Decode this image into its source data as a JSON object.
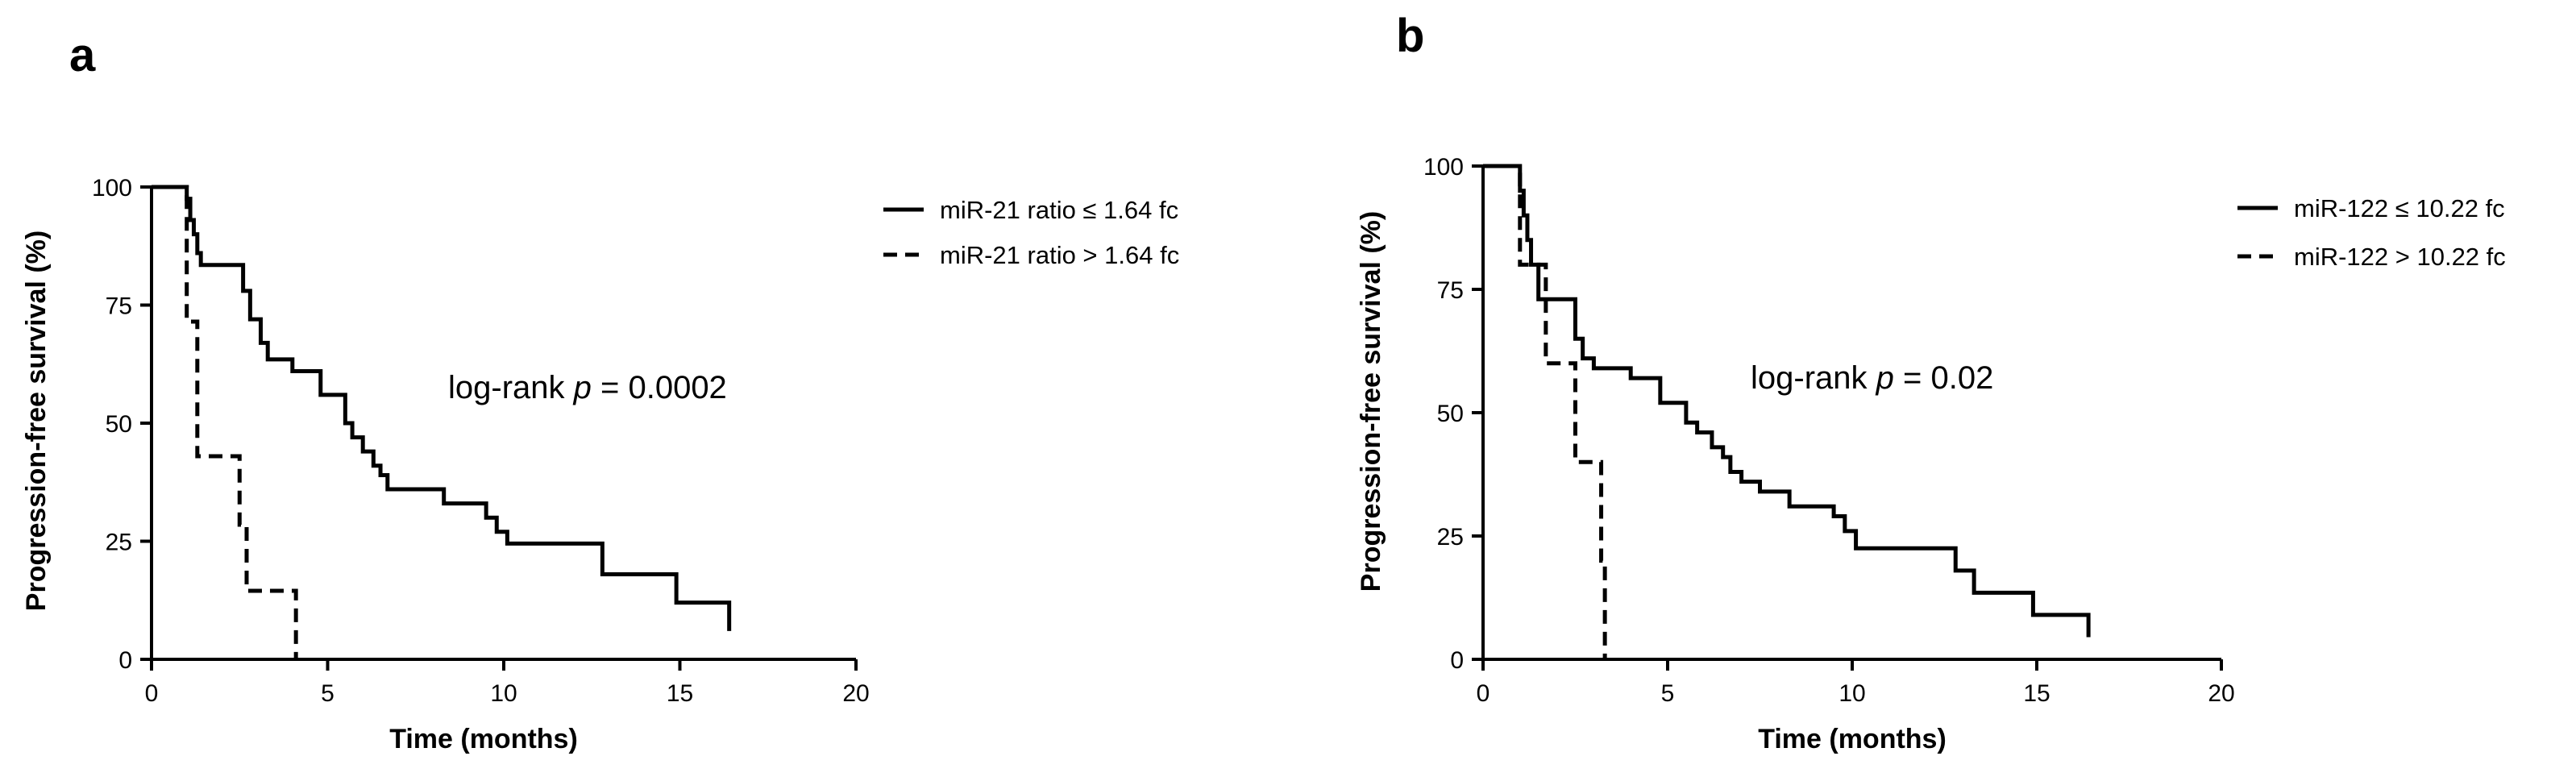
{
  "chart_data": [
    {
      "panel_label": "a",
      "type": "line",
      "xlabel": "Time (months)",
      "ylabel": "Progression-free survival (%)",
      "xlim": [
        0,
        20
      ],
      "ylim": [
        0,
        100
      ],
      "xticks": [
        0,
        5,
        10,
        15,
        20
      ],
      "yticks": [
        0,
        25,
        50,
        75,
        100
      ],
      "grid": false,
      "legend_position": "top-right",
      "annotation": {
        "prefix": "log-rank ",
        "italic": "p",
        "suffix": " = 0.0002"
      },
      "series": [
        {
          "name": "miR-21 ratio ≤ 1.64 fc",
          "style": "solid",
          "x": [
            0,
            1.0,
            1.1,
            1.2,
            1.3,
            1.4,
            2.6,
            2.8,
            3.1,
            3.3,
            4.0,
            4.8,
            5.5,
            5.7,
            6.0,
            6.3,
            6.5,
            6.7,
            7.0,
            7.5,
            8.3,
            9.5,
            9.8,
            10.1,
            12.8,
            14.9,
            16.4
          ],
          "y": [
            100,
            97.5,
            93,
            90,
            86,
            83.5,
            78,
            72,
            67,
            63.5,
            61,
            56,
            50,
            47,
            44,
            41,
            39,
            36,
            36,
            36,
            33,
            30,
            27,
            24.5,
            18,
            12,
            6
          ]
        },
        {
          "name": "miR-21 ratio > 1.64 fc",
          "style": "dashed",
          "x": [
            0,
            1.0,
            1.3,
            2.5,
            2.7,
            4.1
          ],
          "y": [
            100,
            71.5,
            43,
            28.5,
            14.5,
            0
          ]
        }
      ]
    },
    {
      "panel_label": "b",
      "type": "line",
      "xlabel": "Time (months)",
      "ylabel": "Progression-free survival (%)",
      "xlim": [
        0,
        20
      ],
      "ylim": [
        0,
        100
      ],
      "xticks": [
        0,
        5,
        10,
        15,
        20
      ],
      "yticks": [
        0,
        25,
        50,
        75,
        100
      ],
      "grid": false,
      "legend_position": "top-right",
      "annotation": {
        "prefix": "log-rank ",
        "italic": "p",
        "suffix": " = 0.02"
      },
      "series": [
        {
          "name": "miR-122 ≤ 10.22 fc",
          "style": "solid",
          "x": [
            0,
            1.0,
            1.1,
            1.2,
            1.3,
            1.5,
            2.5,
            2.7,
            3.0,
            4.0,
            4.8,
            5.5,
            5.8,
            6.2,
            6.5,
            6.7,
            7.0,
            7.5,
            8.3,
            9.5,
            9.8,
            10.1,
            12.8,
            13.3,
            14.9,
            16.4
          ],
          "y": [
            100,
            95,
            90,
            85,
            80,
            73,
            65,
            61,
            59,
            57,
            52,
            48,
            46,
            43,
            41,
            38,
            36,
            34,
            31,
            29,
            26,
            22.5,
            18,
            13.5,
            9,
            4.5
          ]
        },
        {
          "name": "miR-122 > 10.22 fc",
          "style": "dashed",
          "x": [
            0,
            1.0,
            1.7,
            2.5,
            3.2,
            3.3
          ],
          "y": [
            100,
            80,
            60,
            40,
            20,
            0
          ]
        }
      ]
    }
  ]
}
